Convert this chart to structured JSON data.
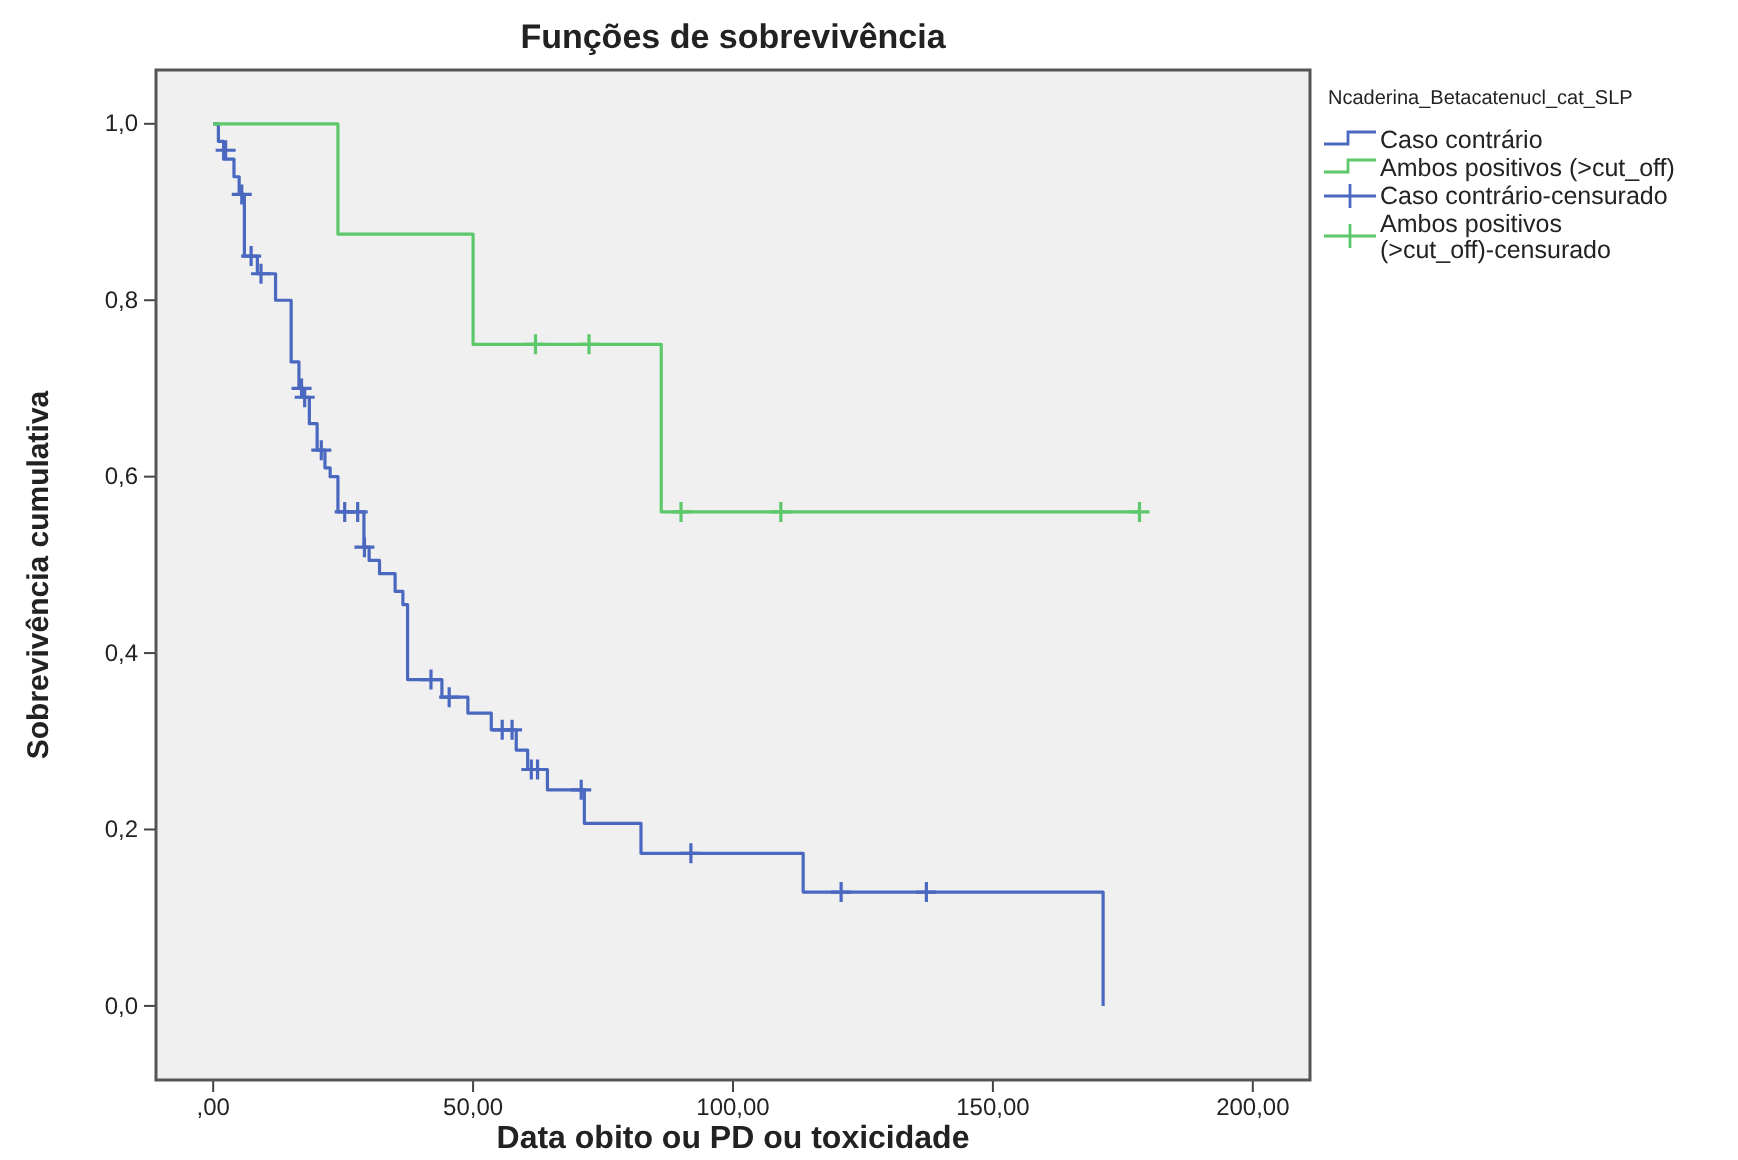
{
  "chart_data": {
    "type": "step",
    "title": "Funções de sobrevivência",
    "xlabel": "Data obito ou PD ou toxicidade",
    "ylabel": "Sobrevivência cumulativa",
    "legend_title": "Ncaderina_Betacatenucl_cat_SLP",
    "legend": "top right",
    "grid": false,
    "xlim": [
      -11,
      211
    ],
    "ylim": [
      -0.084,
      1.061
    ],
    "xticks": [
      {
        "value": 0,
        "label": ",00"
      },
      {
        "value": 50,
        "label": "50,00"
      },
      {
        "value": 100,
        "label": "100,00"
      },
      {
        "value": 150,
        "label": "150,00"
      },
      {
        "value": 200,
        "label": "200,00"
      }
    ],
    "yticks": [
      {
        "value": 0,
        "label": "0,0"
      },
      {
        "value": 0.2,
        "label": "0,2"
      },
      {
        "value": 0.4,
        "label": "0,4"
      },
      {
        "value": 0.6,
        "label": "0,6"
      },
      {
        "value": 0.8,
        "label": "0,8"
      },
      {
        "value": 1,
        "label": "1,0"
      }
    ],
    "series": [
      {
        "name": "Caso contrário",
        "color": "#4a68c0",
        "x": [
          0,
          1,
          2,
          4,
          5,
          6,
          8.5,
          12,
          15,
          16.5,
          17.4,
          18.5,
          20,
          21.5,
          22.5,
          24,
          29,
          30,
          32,
          35,
          36.5,
          37.4,
          44,
          49,
          53.5,
          58.3,
          60.5,
          64.3,
          71.4,
          82.3,
          113.5,
          171.2
        ],
        "values": [
          1,
          0.98,
          0.96,
          0.94,
          0.92,
          0.85,
          0.83,
          0.8,
          0.73,
          0.7,
          0.69,
          0.66,
          0.63,
          0.61,
          0.6,
          0.56,
          0.52,
          0.505,
          0.49,
          0.47,
          0.455,
          0.37,
          0.35,
          0.332,
          0.313,
          0.29,
          0.268,
          0.245,
          0.207,
          0.173,
          0.129,
          0
        ]
      },
      {
        "name": "Ambos positivos (>cut_off)",
        "color": "#5cc86a",
        "x": [
          0,
          24,
          50,
          86.2,
          178.2
        ],
        "values": [
          1,
          0.875,
          0.75,
          0.56,
          0.56
        ]
      },
      {
        "name": "Caso contrário-censurado",
        "type": "scatter",
        "marker": "cross",
        "color": "#4a68c0",
        "x": [
          2.4,
          5.5,
          7.3,
          9.2,
          17,
          17.6,
          20.8,
          25.3,
          27.8,
          29.1,
          41.9,
          45.4,
          55.6,
          57.5,
          61.2,
          62.4,
          70.8,
          91.9,
          120.8,
          137.2
        ],
        "values": [
          0.97,
          0.92,
          0.85,
          0.83,
          0.7,
          0.69,
          0.63,
          0.56,
          0.56,
          0.52,
          0.37,
          0.35,
          0.313,
          0.313,
          0.268,
          0.268,
          0.245,
          0.173,
          0.129,
          0.129
        ]
      },
      {
        "name": "Ambos positivos (>cut_off)-censurado",
        "type": "scatter",
        "marker": "cross",
        "color": "#5cc86a",
        "x": [
          62,
          72.3,
          90,
          109.2,
          178.2
        ],
        "values": [
          0.75,
          0.75,
          0.56,
          0.56,
          0.56
        ]
      }
    ]
  }
}
